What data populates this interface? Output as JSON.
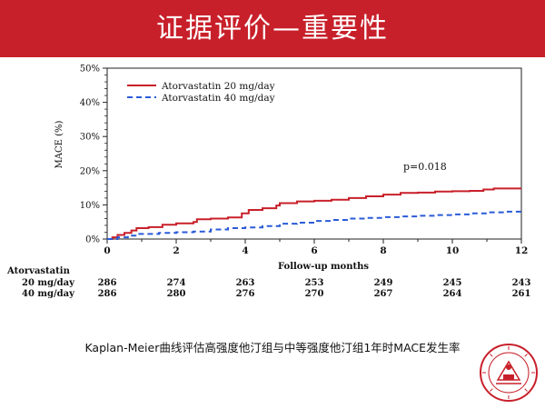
{
  "slide_title": "证据评价—重要性",
  "caption": "Kaplan-Meier曲线评估高强度他汀组与中等强度他汀组1年时MACE发生率",
  "chart_data": {
    "type": "line",
    "ylabel": "MACE (%)",
    "xlabel": "Follow-up months",
    "xlim": [
      0,
      12
    ],
    "ylim": [
      0,
      50
    ],
    "x_ticks": [
      0,
      2,
      4,
      6,
      8,
      10,
      12
    ],
    "y_ticks": [
      0,
      10,
      20,
      30,
      40,
      50
    ],
    "y_tick_labels": [
      "0%",
      "10%",
      "20%",
      "30%",
      "40%",
      "50%"
    ],
    "legend_position": "top-left",
    "annotation": "p=0.018",
    "colors": {
      "series1": "#c8202a",
      "series2": "#2a5bd7"
    },
    "series": [
      {
        "name": "Atorvastatin 20 mg/day",
        "style": "solid",
        "points": [
          [
            0,
            0
          ],
          [
            0.15,
            0.5
          ],
          [
            0.3,
            1.2
          ],
          [
            0.5,
            1.8
          ],
          [
            0.7,
            2.5
          ],
          [
            0.85,
            3.2
          ],
          [
            1.2,
            3.5
          ],
          [
            1.6,
            4.2
          ],
          [
            2.0,
            4.6
          ],
          [
            2.5,
            5.0
          ],
          [
            2.6,
            5.8
          ],
          [
            3.0,
            6.0
          ],
          [
            3.5,
            6.3
          ],
          [
            3.9,
            7.5
          ],
          [
            4.1,
            8.5
          ],
          [
            4.5,
            9.0
          ],
          [
            4.9,
            9.8
          ],
          [
            5.0,
            10.5
          ],
          [
            5.5,
            11.0
          ],
          [
            6.0,
            11.2
          ],
          [
            6.5,
            11.5
          ],
          [
            7.0,
            12.0
          ],
          [
            7.5,
            12.5
          ],
          [
            8.0,
            13.0
          ],
          [
            8.5,
            13.5
          ],
          [
            9.0,
            13.6
          ],
          [
            9.5,
            13.9
          ],
          [
            10.0,
            14.0
          ],
          [
            10.5,
            14.1
          ],
          [
            10.9,
            14.5
          ],
          [
            11.2,
            14.8
          ],
          [
            12,
            14.8
          ]
        ]
      },
      {
        "name": "Atorvastatin 40 mg/day",
        "style": "dashed",
        "points": [
          [
            0,
            0
          ],
          [
            0.3,
            0.5
          ],
          [
            0.6,
            1.0
          ],
          [
            0.9,
            1.5
          ],
          [
            1.5,
            1.8
          ],
          [
            2.0,
            2.0
          ],
          [
            2.5,
            2.2
          ],
          [
            3.0,
            2.8
          ],
          [
            3.5,
            3.2
          ],
          [
            4.0,
            3.4
          ],
          [
            4.5,
            3.8
          ],
          [
            5.0,
            4.5
          ],
          [
            5.5,
            4.8
          ],
          [
            6.0,
            5.3
          ],
          [
            6.5,
            5.6
          ],
          [
            7.0,
            6.0
          ],
          [
            7.5,
            6.2
          ],
          [
            8.0,
            6.4
          ],
          [
            8.5,
            6.6
          ],
          [
            9.0,
            6.8
          ],
          [
            9.5,
            7.0
          ],
          [
            10.0,
            7.2
          ],
          [
            10.5,
            7.5
          ],
          [
            11.0,
            7.8
          ],
          [
            11.5,
            8.0
          ],
          [
            12,
            8.0
          ]
        ]
      }
    ],
    "risk_table": {
      "header": "Atorvastatin",
      "rows": [
        {
          "label": "20 mg/day",
          "values": [
            286,
            274,
            263,
            253,
            249,
            245,
            243
          ]
        },
        {
          "label": "40 mg/day",
          "values": [
            286,
            280,
            276,
            270,
            267,
            264,
            261
          ]
        }
      ]
    }
  }
}
